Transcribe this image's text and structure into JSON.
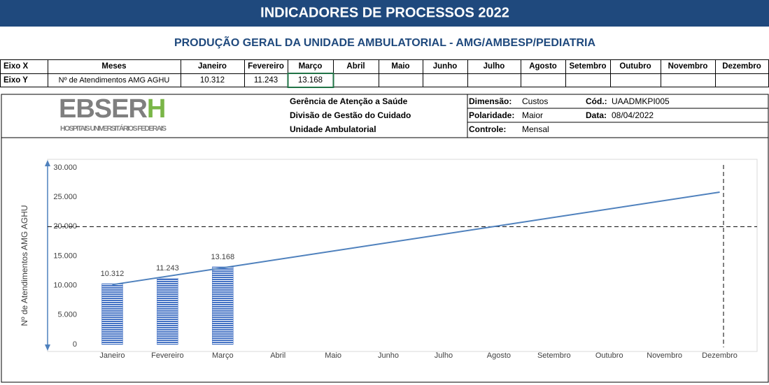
{
  "header": {
    "title": "INDICADORES DE PROCESSOS 2022",
    "subtitle": "PRODUÇÃO GERAL DA UNIDADE AMBULATORIAL - AMG/AMBESP/PEDIATRIA"
  },
  "table": {
    "row_x": [
      "Eixo X",
      "Meses",
      "Janeiro",
      "Fevereiro",
      "Março",
      "Abril",
      "Maio",
      "Junho",
      "Julho",
      "Agosto",
      "Setembro",
      "Outubro",
      "Novembro",
      "Dezembro"
    ],
    "row_y": {
      "label": "Eixo Y",
      "measure": "Nº de Atendimentos AMG AGHU",
      "values": [
        "10.312",
        "11.243",
        "13.168"
      ]
    }
  },
  "info": {
    "logo": {
      "main": "EBSER",
      "accent": "H",
      "sub": "HOSPITAIS UNIVERSITÁRIOS FEDERAIS"
    },
    "lines": [
      "Gerência de Atenção a Saúde",
      "Divisão de Gestão do Cuidado",
      "Unidade Ambulatorial"
    ],
    "fields": [
      {
        "label": "Dimensão:",
        "value": "Custos"
      },
      {
        "label": "Cód.:",
        "value": "UAADMKPI005"
      },
      {
        "label": "Polaridade:",
        "value": "Maior"
      },
      {
        "label": "Data:",
        "value": "08/04/2022"
      },
      {
        "label": "Controle:",
        "value": "Mensal"
      }
    ]
  },
  "chart_data": {
    "type": "bar",
    "y_label": "Nº de Atendimentos AMG AGHU",
    "categories": [
      "Janeiro",
      "Fevereiro",
      "Março",
      "Abril",
      "Maio",
      "Junho",
      "Julho",
      "Agosto",
      "Setembro",
      "Outubro",
      "Novembro",
      "Dezembro"
    ],
    "values": [
      10312,
      11243,
      13168,
      null,
      null,
      null,
      null,
      null,
      null,
      null,
      null,
      null
    ],
    "value_labels": [
      "10.312",
      "11.243",
      "13.168",
      null,
      null,
      null,
      null,
      null,
      null,
      null,
      null,
      null
    ],
    "color": "#4472c4",
    "trendline": "linear",
    "trend_color": "#4f81bd",
    "target": 20000,
    "ylim": [
      0,
      30000
    ],
    "yticks": [
      0,
      {
        "value": 5000,
        "label": "5.000"
      },
      {
        "value": 10000,
        "label": "10.000"
      },
      {
        "value": 15000,
        "label": "15.000"
      },
      {
        "value": 20000,
        "label": "20.000"
      },
      {
        "value": 25000,
        "label": "25.000"
      },
      {
        "value": 30000,
        "label": "30.000"
      }
    ],
    "grid": false
  }
}
